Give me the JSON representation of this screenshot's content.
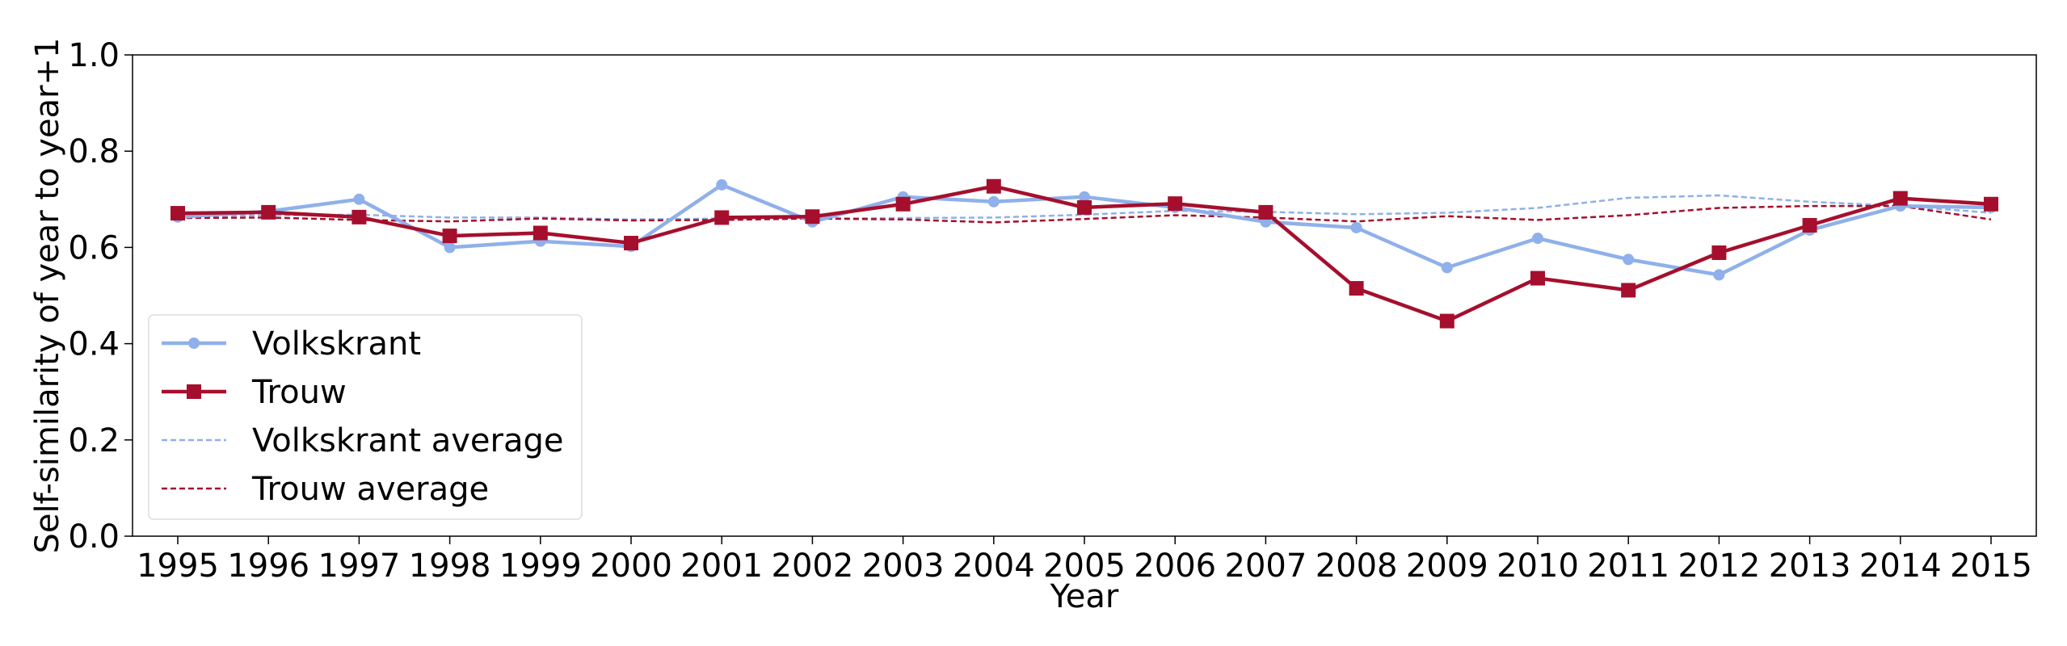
{
  "chart_data": {
    "type": "line",
    "xlabel": "Year",
    "ylabel": "Self-similarity of year to year+1",
    "x": [
      1995,
      1996,
      1997,
      1998,
      1999,
      2000,
      2001,
      2002,
      2003,
      2004,
      2005,
      2006,
      2007,
      2008,
      2009,
      2010,
      2011,
      2012,
      2013,
      2014,
      2015
    ],
    "x_ticks": [
      "1995",
      "1996",
      "1997",
      "1998",
      "1999",
      "2000",
      "2001",
      "2002",
      "2003",
      "2004",
      "2005",
      "2006",
      "2007",
      "2008",
      "2009",
      "2010",
      "2011",
      "2012",
      "2013",
      "2014",
      "2015"
    ],
    "ylim": [
      0.0,
      1.0
    ],
    "y_ticks": [
      "0.0",
      "0.2",
      "0.4",
      "0.6",
      "0.8",
      "1.0"
    ],
    "y_tick_values": [
      0.0,
      0.2,
      0.4,
      0.6,
      0.8,
      1.0
    ],
    "grid": false,
    "legend_position": "lower-left",
    "series": [
      {
        "name": "Volkskrant",
        "color": "#8fb0ea",
        "style": "solid",
        "marker": "circle",
        "values": [
          0.663,
          0.675,
          0.7,
          0.6,
          0.613,
          0.602,
          0.73,
          0.653,
          0.705,
          0.695,
          0.705,
          0.683,
          0.653,
          0.641,
          0.558,
          0.619,
          0.575,
          0.543,
          0.636,
          0.686,
          0.683
        ]
      },
      {
        "name": "Trouw",
        "color": "#a50f2d",
        "style": "solid",
        "marker": "square",
        "values": [
          0.671,
          0.673,
          0.663,
          0.624,
          0.63,
          0.609,
          0.662,
          0.664,
          0.69,
          0.727,
          0.683,
          0.691,
          0.673,
          0.515,
          0.447,
          0.536,
          0.511,
          0.589,
          0.646,
          0.702,
          0.69
        ]
      },
      {
        "name": "Volkskrant average",
        "color": "#8fb0ea",
        "style": "dashed",
        "marker": "none",
        "values": [
          0.665,
          0.667,
          0.668,
          0.662,
          0.662,
          0.658,
          0.66,
          0.66,
          0.661,
          0.662,
          0.668,
          0.676,
          0.674,
          0.669,
          0.672,
          0.682,
          0.703,
          0.708,
          0.695,
          0.686,
          0.672
        ]
      },
      {
        "name": "Trouw average",
        "color": "#a50f2d",
        "style": "dashed",
        "marker": "none",
        "values": [
          0.661,
          0.662,
          0.657,
          0.654,
          0.66,
          0.656,
          0.657,
          0.66,
          0.658,
          0.652,
          0.659,
          0.667,
          0.662,
          0.654,
          0.665,
          0.657,
          0.667,
          0.682,
          0.686,
          0.686,
          0.658
        ]
      }
    ]
  }
}
